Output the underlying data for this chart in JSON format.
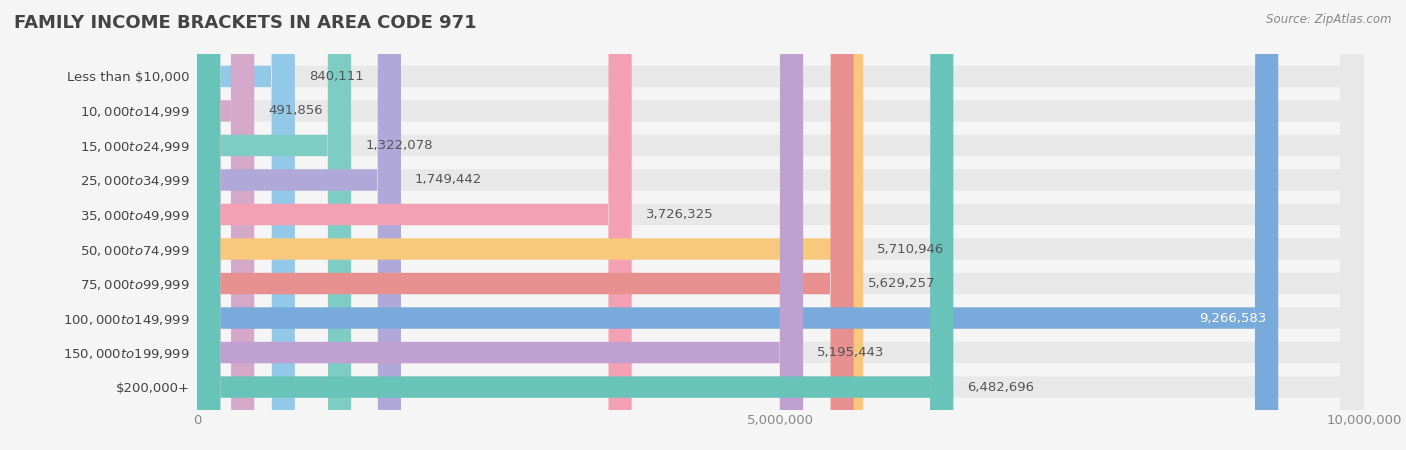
{
  "title": "FAMILY INCOME BRACKETS IN AREA CODE 971",
  "source": "Source: ZipAtlas.com",
  "categories": [
    "Less than $10,000",
    "$10,000 to $14,999",
    "$15,000 to $24,999",
    "$25,000 to $34,999",
    "$35,000 to $49,999",
    "$50,000 to $74,999",
    "$75,000 to $99,999",
    "$100,000 to $149,999",
    "$150,000 to $199,999",
    "$200,000+"
  ],
  "values": [
    840111,
    491856,
    1322078,
    1749442,
    3726325,
    5710946,
    5629257,
    9266583,
    5195443,
    6482696
  ],
  "bar_colors": [
    "#92C8E8",
    "#D4A8C8",
    "#7ECDC4",
    "#B0A8D8",
    "#F4A0B4",
    "#F8C87C",
    "#E89090",
    "#78AADC",
    "#C0A0D0",
    "#68C4B8"
  ],
  "background_color": "#f5f5f5",
  "bar_background_color": "#e8e8e8",
  "xlim": [
    0,
    10000000
  ],
  "title_fontsize": 13,
  "label_fontsize": 9.5,
  "value_fontsize": 9.5
}
